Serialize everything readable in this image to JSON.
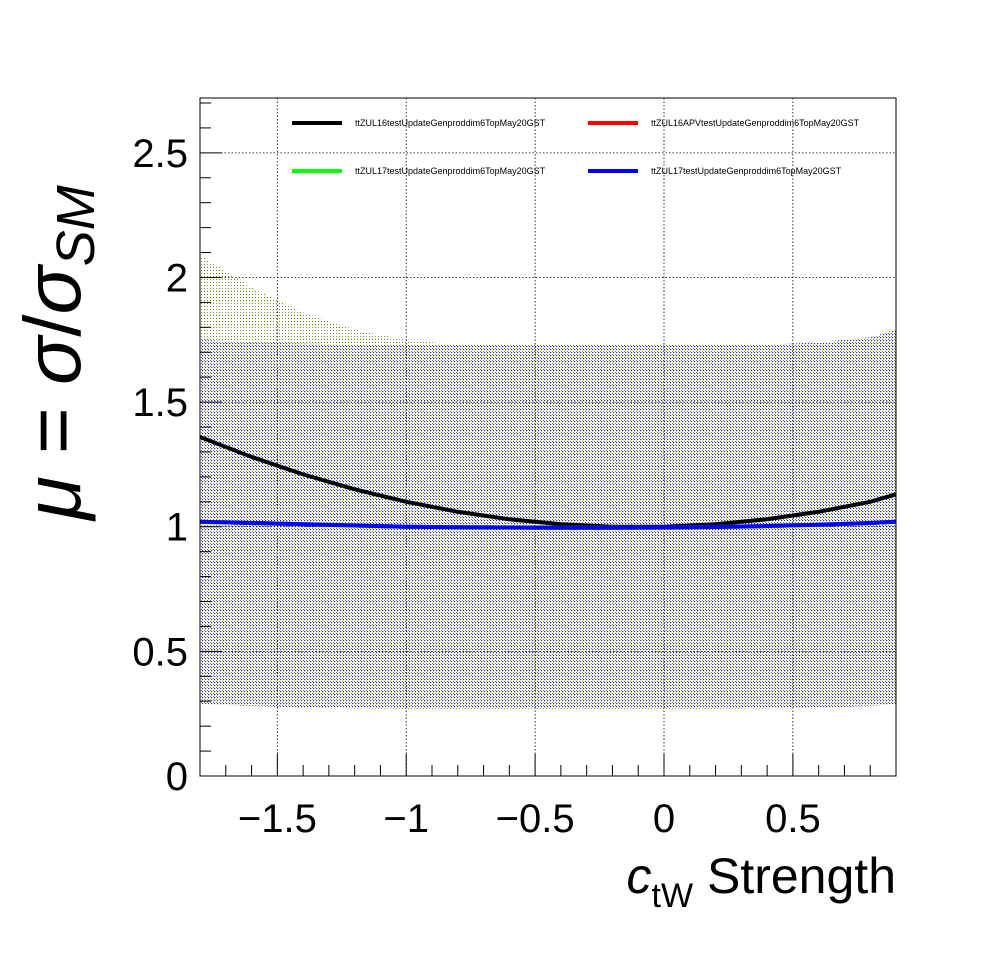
{
  "chart_data": {
    "type": "line",
    "title": "",
    "xlabel": {
      "main": "c",
      "sub": "tW",
      "rest": " Strength"
    },
    "ylabel": {
      "mu": "μ",
      "eq": " = ",
      "sigma1": "σ",
      "slash": "/",
      "sigma2": "σ",
      "sub": "SM"
    },
    "xlim": [
      -1.8,
      0.9
    ],
    "ylim": [
      0,
      2.72
    ],
    "grid": true,
    "legend_position": "top",
    "x_ticks": [
      {
        "value": -1.5,
        "label": "−1.5"
      },
      {
        "value": -1.0,
        "label": "−1"
      },
      {
        "value": -0.5,
        "label": "−0.5"
      },
      {
        "value": 0.0,
        "label": "0"
      },
      {
        "value": 0.5,
        "label": "0.5"
      }
    ],
    "y_ticks": [
      {
        "value": 0,
        "label": "0"
      },
      {
        "value": 0.5,
        "label": "0.5"
      },
      {
        "value": 1,
        "label": "1"
      },
      {
        "value": 1.5,
        "label": "1.5"
      },
      {
        "value": 2,
        "label": "2"
      },
      {
        "value": 2.5,
        "label": "2.5"
      }
    ],
    "x": [
      -1.8,
      -1.6,
      -1.4,
      -1.2,
      -1.0,
      -0.8,
      -0.6,
      -0.4,
      -0.2,
      0.0,
      0.2,
      0.4,
      0.6,
      0.8,
      0.9
    ],
    "series": [
      {
        "name": "ttZUL16testUpdateGenproddim6TopMay20GST",
        "color": "#000000",
        "values": [
          1.36,
          1.28,
          1.21,
          1.15,
          1.1,
          1.06,
          1.03,
          1.01,
          1.0,
          1.0,
          1.01,
          1.03,
          1.06,
          1.1,
          1.13
        ]
      },
      {
        "name": "ttZUL16APVtestUpdateGenproddim6TopMay20GST",
        "color": "#ff0000",
        "values": [
          1.02,
          1.015,
          1.01,
          1.005,
          1.0,
          0.998,
          0.997,
          0.996,
          0.996,
          0.997,
          0.999,
          1.003,
          1.008,
          1.015,
          1.02
        ]
      },
      {
        "name": "ttZUL17testUpdateGenproddim6TopMay20GST",
        "color": "#00ff00",
        "values": [
          1.02,
          1.015,
          1.01,
          1.005,
          1.0,
          0.998,
          0.997,
          0.996,
          0.996,
          0.997,
          0.999,
          1.003,
          1.008,
          1.015,
          1.02
        ]
      },
      {
        "name": "ttZUL17testUpdateGenproddim6TopMay20GST",
        "color": "#0000ff",
        "values": [
          1.02,
          1.015,
          1.01,
          1.005,
          1.0,
          0.998,
          0.997,
          0.996,
          0.996,
          0.997,
          0.999,
          1.003,
          1.008,
          1.015,
          1.02
        ]
      }
    ],
    "bands": [
      {
        "color": "#556b2f",
        "dot": "#6b8e23",
        "x": [
          -1.8,
          -1.6,
          -1.4,
          -1.2,
          -1.0,
          -0.8,
          -0.6,
          -0.4,
          -0.2,
          0.0,
          0.2,
          0.4,
          0.6,
          0.8,
          0.9
        ],
        "upper": [
          2.09,
          1.96,
          1.86,
          1.79,
          1.75,
          1.73,
          1.73,
          1.73,
          1.73,
          1.73,
          1.73,
          1.73,
          1.73,
          1.76,
          1.79
        ],
        "lower": [
          0.29,
          0.28,
          0.275,
          0.272,
          0.27,
          0.27,
          0.27,
          0.27,
          0.27,
          0.27,
          0.27,
          0.272,
          0.275,
          0.28,
          0.29
        ]
      },
      {
        "color": "#1e1e8c",
        "dot": "#2b2bb0",
        "x": [
          -1.8,
          -1.6,
          -1.4,
          -1.2,
          -1.0,
          -0.8,
          -0.6,
          -0.4,
          -0.2,
          0.0,
          0.2,
          0.4,
          0.6,
          0.8,
          0.9
        ],
        "upper": [
          1.75,
          1.74,
          1.735,
          1.73,
          1.73,
          1.73,
          1.73,
          1.73,
          1.73,
          1.73,
          1.73,
          1.73,
          1.74,
          1.76,
          1.79
        ],
        "lower": [
          0.29,
          0.28,
          0.275,
          0.272,
          0.27,
          0.27,
          0.27,
          0.27,
          0.27,
          0.27,
          0.27,
          0.272,
          0.275,
          0.28,
          0.29
        ]
      }
    ]
  }
}
